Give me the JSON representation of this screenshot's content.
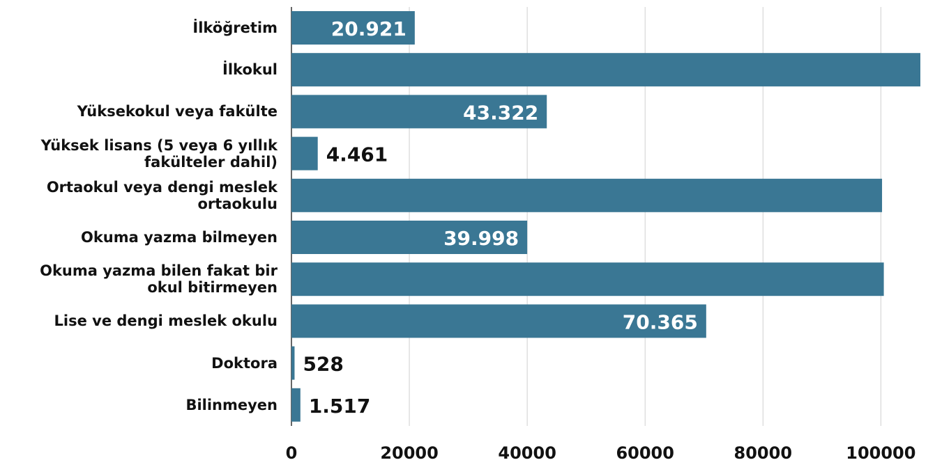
{
  "chart_data": {
    "type": "bar",
    "orientation": "horizontal",
    "color": "#3a7794",
    "categories": [
      "İlköğretim",
      "İlkokul",
      "Yüksekokul veya fakülte",
      "Yüksek lisans (5 veya 6 yıllık fakülteler dahil)",
      "Ortaokul veya dengi meslek ortaokulu",
      "Okuma yazma bilmeyen",
      "Okuma yazma bilen fakat bir okul bitirmeyen",
      "Lise ve dengi meslek okulu",
      "Doktora",
      "Bilinmeyen"
    ],
    "values": [
      20921,
      106700,
      43322,
      4461,
      100200,
      39998,
      100500,
      70365,
      528,
      1517
    ],
    "value_labels": [
      "20.921",
      null,
      "43.322",
      "4.461",
      null,
      "39.998",
      null,
      "70.365",
      "528",
      "1.517"
    ],
    "xlim": [
      0,
      106700
    ],
    "xticks": [
      0,
      20000,
      40000,
      60000,
      80000,
      100000
    ],
    "grid": true
  }
}
